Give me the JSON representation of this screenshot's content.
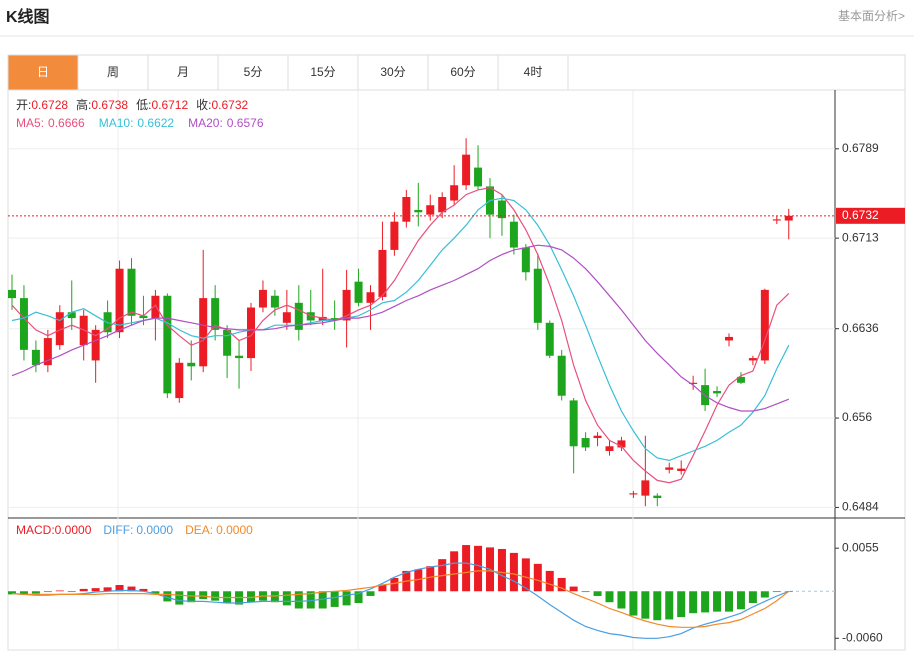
{
  "header": {
    "title": "K线图",
    "link": "基本面分析>"
  },
  "tabs": [
    "日",
    "周",
    "月",
    "5分",
    "15分",
    "30分",
    "60分",
    "4时"
  ],
  "active_tab": 0,
  "chart_data": [
    {
      "type": "candlestick",
      "ylim": [
        0.6475,
        0.6839
      ],
      "yticks": [
        0.6484,
        0.656,
        0.6636,
        0.6713,
        0.6789
      ],
      "grid": true,
      "up_color": "#ec1c24",
      "down_color": "#1ea51e",
      "current_price": 0.6732,
      "readout": [
        {
          "label": "开:",
          "value": "0.6728"
        },
        {
          "label": "高:",
          "value": "0.6738"
        },
        {
          "label": "低:",
          "value": "0.6712"
        },
        {
          "label": "收:",
          "value": "0.6732"
        }
      ],
      "open": [
        0.6669,
        0.6662,
        0.6618,
        0.6605,
        0.6622,
        0.665,
        0.6622,
        0.6609,
        0.665,
        0.6633,
        0.6687,
        0.6647,
        0.6645,
        0.6664,
        0.6577,
        0.6607,
        0.6604,
        0.6662,
        0.6635,
        0.6613,
        0.6611,
        0.6654,
        0.6664,
        0.6641,
        0.6658,
        0.665,
        0.6643,
        0.6645,
        0.6643,
        0.6676,
        0.6658,
        0.6663,
        0.6703,
        0.6727,
        0.6737,
        0.6733,
        0.6735,
        0.6745,
        0.6758,
        0.6773,
        0.6757,
        0.6745,
        0.6727,
        0.6705,
        0.6687,
        0.6641,
        0.6613,
        0.6575,
        0.6543,
        0.6543,
        0.6532,
        0.6535,
        0.6495,
        0.6494,
        0.6494,
        0.6516,
        0.6515,
        0.6589,
        0.6588,
        0.6583,
        0.6626,
        0.6595,
        0.6609,
        0.6609,
        0.6728,
        0.6728
      ],
      "high": [
        0.6682,
        0.6673,
        0.6626,
        0.6635,
        0.6656,
        0.6677,
        0.6652,
        0.6639,
        0.666,
        0.6694,
        0.6696,
        0.6664,
        0.6669,
        0.6666,
        0.6611,
        0.6626,
        0.6703,
        0.6673,
        0.6639,
        0.6626,
        0.6658,
        0.6677,
        0.6669,
        0.6669,
        0.6673,
        0.6669,
        0.6687,
        0.666,
        0.6686,
        0.6687,
        0.6673,
        0.6727,
        0.6735,
        0.6754,
        0.676,
        0.675,
        0.6752,
        0.6775,
        0.6798,
        0.6792,
        0.6764,
        0.675,
        0.6733,
        0.6708,
        0.67,
        0.6643,
        0.6618,
        0.6577,
        0.6548,
        0.6548,
        0.6541,
        0.6544,
        0.6498,
        0.6545,
        0.6496,
        0.6522,
        0.6524,
        0.6596,
        0.6602,
        0.6587,
        0.6632,
        0.6599,
        0.6613,
        0.667,
        0.6732,
        0.6738
      ],
      "low": [
        0.6652,
        0.6609,
        0.6599,
        0.6599,
        0.6618,
        0.6635,
        0.6609,
        0.659,
        0.6628,
        0.6628,
        0.6639,
        0.6639,
        0.6626,
        0.6577,
        0.6573,
        0.6592,
        0.6599,
        0.6626,
        0.6594,
        0.6585,
        0.66,
        0.665,
        0.6647,
        0.6635,
        0.6626,
        0.6639,
        0.6639,
        0.6635,
        0.662,
        0.6655,
        0.6635,
        0.666,
        0.6698,
        0.6722,
        0.6723,
        0.6728,
        0.673,
        0.6741,
        0.6754,
        0.6754,
        0.6713,
        0.6715,
        0.6699,
        0.6677,
        0.6635,
        0.6611,
        0.6575,
        0.6513,
        0.6532,
        0.6536,
        0.6528,
        0.6532,
        0.6492,
        0.6485,
        0.6485,
        0.6513,
        0.6512,
        0.6584,
        0.6566,
        0.6578,
        0.6621,
        0.6589,
        0.6605,
        0.6606,
        0.6725,
        0.6712
      ],
      "close": [
        0.6662,
        0.6618,
        0.6605,
        0.6628,
        0.665,
        0.6645,
        0.6647,
        0.6635,
        0.6633,
        0.6687,
        0.6647,
        0.6645,
        0.6664,
        0.6581,
        0.6607,
        0.6604,
        0.6662,
        0.6635,
        0.6613,
        0.6611,
        0.6654,
        0.6669,
        0.6654,
        0.665,
        0.6635,
        0.6643,
        0.6646,
        0.6643,
        0.6669,
        0.6658,
        0.6667,
        0.6703,
        0.6727,
        0.6748,
        0.6735,
        0.6741,
        0.6748,
        0.6758,
        0.6784,
        0.6757,
        0.6733,
        0.673,
        0.6705,
        0.6684,
        0.6641,
        0.6613,
        0.6579,
        0.6536,
        0.6535,
        0.6545,
        0.6536,
        0.6541,
        0.6496,
        0.6507,
        0.6492,
        0.6518,
        0.6517,
        0.659,
        0.6571,
        0.6581,
        0.6629,
        0.659,
        0.6611,
        0.6669,
        0.6729,
        0.6732
      ],
      "series": [
        {
          "name": "MA5:",
          "color": "#e8507e",
          "readout": "0.6666",
          "values": [
            0.6656,
            0.6645,
            0.6635,
            0.663,
            0.6635,
            0.6639,
            0.6635,
            0.663,
            0.6636,
            0.6645,
            0.665,
            0.6647,
            0.6656,
            0.6639,
            0.663,
            0.6622,
            0.6626,
            0.6639,
            0.6635,
            0.6626,
            0.663,
            0.6643,
            0.6652,
            0.6656,
            0.6652,
            0.6647,
            0.6645,
            0.6643,
            0.6647,
            0.6652,
            0.6656,
            0.6664,
            0.6677,
            0.6694,
            0.6711,
            0.6724,
            0.6735,
            0.6741,
            0.675,
            0.6754,
            0.6756,
            0.675,
            0.6737,
            0.672,
            0.6699,
            0.6673,
            0.6643,
            0.6605,
            0.6575,
            0.6554,
            0.6541,
            0.6536,
            0.6524,
            0.6515,
            0.6507,
            0.6505,
            0.6508,
            0.6528,
            0.6549,
            0.6571,
            0.6588,
            0.6596,
            0.66,
            0.6626,
            0.6656,
            0.6666
          ]
        },
        {
          "name": "MA10:",
          "color": "#38bfd6",
          "readout": "0.6622",
          "values": [
            0.6643,
            0.6645,
            0.665,
            0.6647,
            0.6643,
            0.665,
            0.6653,
            0.6647,
            0.6641,
            0.6639,
            0.6641,
            0.6643,
            0.6645,
            0.6641,
            0.6635,
            0.663,
            0.6628,
            0.663,
            0.663,
            0.6633,
            0.6635,
            0.6635,
            0.6639,
            0.6639,
            0.6639,
            0.6641,
            0.6643,
            0.6643,
            0.6645,
            0.6647,
            0.6652,
            0.6658,
            0.666,
            0.6667,
            0.6677,
            0.669,
            0.6703,
            0.6713,
            0.6724,
            0.6737,
            0.6745,
            0.6747,
            0.6745,
            0.6737,
            0.6724,
            0.6707,
            0.6686,
            0.6664,
            0.6639,
            0.6613,
            0.6588,
            0.6566,
            0.6549,
            0.6534,
            0.6526,
            0.6524,
            0.6528,
            0.6532,
            0.6536,
            0.6541,
            0.6548,
            0.6554,
            0.6565,
            0.6579,
            0.6602,
            0.6622
          ]
        },
        {
          "name": "MA20:",
          "color": "#b14fc4",
          "readout": "0.6576",
          "values": [
            0.6596,
            0.66,
            0.6605,
            0.6609,
            0.6613,
            0.6618,
            0.6622,
            0.6626,
            0.663,
            0.6635,
            0.6639,
            0.6643,
            0.6645,
            0.6645,
            0.6643,
            0.6641,
            0.6639,
            0.6637,
            0.6636,
            0.6635,
            0.6635,
            0.6635,
            0.6636,
            0.6638,
            0.6639,
            0.664,
            0.6641,
            0.6643,
            0.6645,
            0.6645,
            0.6647,
            0.665,
            0.6655,
            0.666,
            0.6664,
            0.6669,
            0.6673,
            0.6677,
            0.6682,
            0.6687,
            0.6694,
            0.6699,
            0.6703,
            0.6705,
            0.6707,
            0.6706,
            0.6703,
            0.6696,
            0.6687,
            0.6676,
            0.6664,
            0.6652,
            0.6639,
            0.6626,
            0.6615,
            0.6605,
            0.6595,
            0.6588,
            0.6579,
            0.6573,
            0.6569,
            0.6566,
            0.6566,
            0.6568,
            0.6572,
            0.6576
          ]
        }
      ]
    },
    {
      "type": "macd",
      "ylim": [
        -0.0075,
        0.0091
      ],
      "yticks": [
        0.0055,
        {
          "value": -0.006,
          "label": "-0.0060"
        }
      ],
      "histogram": {
        "name": "MACD:",
        "readout": "0.0000",
        "color": "#ec1c24",
        "down_color": "#1ea51e",
        "values": [
          -0.0004,
          -0.0004,
          -0.0003,
          -0.0001,
          0.0001,
          -0.0001,
          0.0003,
          0.0004,
          0.0005,
          0.0008,
          0.0006,
          0.0003,
          -0.0003,
          -0.0013,
          -0.0017,
          -0.0014,
          -0.001,
          -0.0012,
          -0.0015,
          -0.0017,
          -0.0014,
          -0.0012,
          -0.0014,
          -0.0018,
          -0.0022,
          -0.0022,
          -0.0022,
          -0.002,
          -0.0018,
          -0.0015,
          -0.0006,
          0.0008,
          0.0017,
          0.0026,
          0.0028,
          0.0032,
          0.0041,
          0.0051,
          0.0059,
          0.0058,
          0.0056,
          0.0054,
          0.0049,
          0.0042,
          0.0035,
          0.0026,
          0.0017,
          0.0006,
          -0.0001,
          -0.0006,
          -0.0014,
          -0.0022,
          -0.0031,
          -0.0035,
          -0.0037,
          -0.0036,
          -0.0033,
          -0.0028,
          -0.0027,
          -0.0026,
          -0.0026,
          -0.0023,
          -0.0015,
          -0.0008,
          -0.0001,
          0
        ]
      },
      "series": [
        {
          "name": "DIFF:",
          "color": "#4a9ee0",
          "readout": "0.0000",
          "values": [
            -0.0003,
            -0.0004,
            -0.0005,
            -0.0005,
            -0.0004,
            -0.0004,
            -0.0003,
            -0.0001,
            0,
            0.0001,
            0.0001,
            0,
            -0.0003,
            -0.0008,
            -0.0012,
            -0.0013,
            -0.0013,
            -0.0014,
            -0.0015,
            -0.0015,
            -0.0014,
            -0.0013,
            -0.0013,
            -0.0013,
            -0.0013,
            -0.0012,
            -0.001,
            -0.0008,
            -0.0005,
            -0.0003,
            0.0003,
            0.001,
            0.0018,
            0.0024,
            0.0028,
            0.0031,
            0.0033,
            0.0036,
            0.0036,
            0.0033,
            0.0028,
            0.002,
            0.0013,
            0.0004,
            -0.0006,
            -0.0017,
            -0.0027,
            -0.0037,
            -0.0045,
            -0.005,
            -0.0054,
            -0.0056,
            -0.0059,
            -0.006,
            -0.006,
            -0.0058,
            -0.0054,
            -0.0047,
            -0.0042,
            -0.0038,
            -0.0033,
            -0.0028,
            -0.002,
            -0.0013,
            -0.0006,
            0
          ]
        },
        {
          "name": "DEA:",
          "color": "#f08a2c",
          "readout": "0.0000",
          "values": [
            -0.0003,
            -0.0004,
            -0.0004,
            -0.0004,
            -0.0004,
            -0.0004,
            -0.0004,
            -0.0004,
            -0.0003,
            -0.0003,
            -0.0003,
            -0.0003,
            -0.0004,
            -0.0004,
            -0.0005,
            -0.0006,
            -0.0006,
            -0.0008,
            -0.0008,
            -0.0008,
            -0.0008,
            -0.0006,
            -0.0006,
            -0.0005,
            -0.0004,
            -0.0003,
            -0.0001,
            0,
            0.0001,
            0.0003,
            0.0005,
            0.0008,
            0.001,
            0.0013,
            0.0015,
            0.0018,
            0.002,
            0.0022,
            0.0024,
            0.0026,
            0.0026,
            0.0024,
            0.0022,
            0.0018,
            0.0014,
            0.0009,
            0.0004,
            -0.0003,
            -0.0009,
            -0.0015,
            -0.0022,
            -0.0027,
            -0.0033,
            -0.0038,
            -0.0042,
            -0.0045,
            -0.0046,
            -0.0046,
            -0.0045,
            -0.0042,
            -0.004,
            -0.0036,
            -0.0029,
            -0.0022,
            -0.0012,
            0
          ]
        }
      ]
    }
  ]
}
